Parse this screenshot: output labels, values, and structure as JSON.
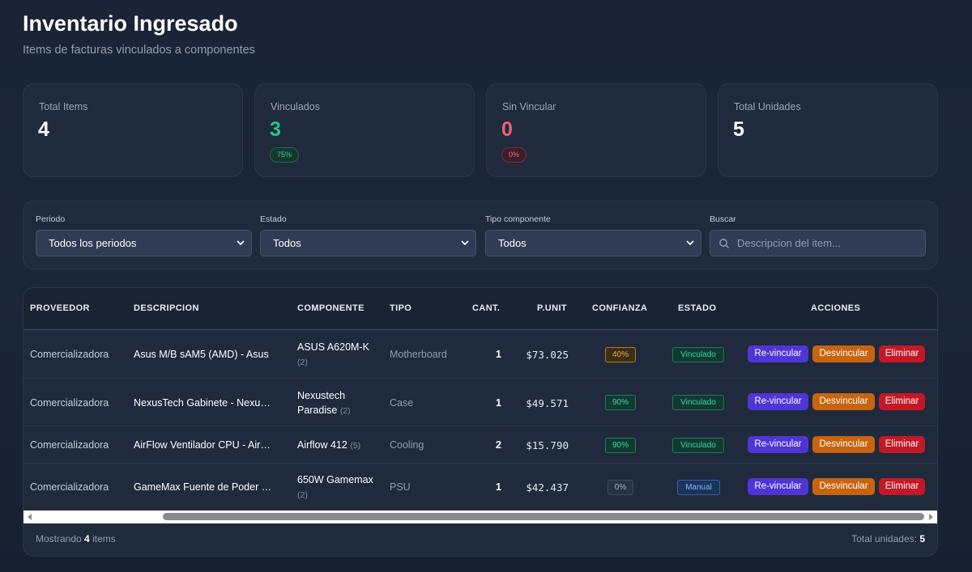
{
  "header": {
    "title": "Inventario Ingresado",
    "subtitle": "Items de facturas vinculados a componentes"
  },
  "stats": [
    {
      "label": "Total Items",
      "value": "4",
      "color": "#ffffff",
      "pct": ""
    },
    {
      "label": "Vinculados",
      "value": "3",
      "color": "#22c98b",
      "pct": "75%"
    },
    {
      "label": "Sin Vincular",
      "value": "0",
      "color": "#f0606d",
      "pct": "0%"
    },
    {
      "label": "Total Unidades",
      "value": "5",
      "color": "#ffffff",
      "pct": ""
    }
  ],
  "filters": {
    "periodo": {
      "label": "Periodo",
      "value": "Todos los periodos"
    },
    "estado": {
      "label": "Estado",
      "value": "Todos"
    },
    "tipo": {
      "label": "Tipo componente",
      "value": "Todos"
    },
    "buscar": {
      "label": "Buscar",
      "placeholder": "Descripcion del item..."
    }
  },
  "table": {
    "columns": [
      "PROVEEDOR",
      "DESCRIPCION",
      "COMPONENTE",
      "TIPO",
      "CANT.",
      "P.UNIT",
      "CONFIANZA",
      "ESTADO",
      "ACCIONES"
    ],
    "actions": {
      "relink": "Re-vincular",
      "unlink": "Desvincular",
      "delete": "Eliminar"
    },
    "rows": [
      {
        "proveedor": "Comercializadora",
        "descripcion": "Asus M/B sAM5 (AMD) - Asus",
        "componente": "ASUS A620M-K",
        "count": "(2)",
        "tipo": "Motherboard",
        "cant": "1",
        "punit": "$73.025",
        "confianza": "40%",
        "estado": "Vinculado"
      },
      {
        "proveedor": "Comercializadora",
        "descripcion": "NexusTech Gabinete - NexusTech",
        "componente": "Nexustech Paradise",
        "count": "(2)",
        "tipo": "Case",
        "cant": "1",
        "punit": "$49.571",
        "confianza": "90%",
        "estado": "Vinculado"
      },
      {
        "proveedor": "Comercializadora",
        "descripcion": "AirFlow Ventilador CPU - AirFlow",
        "componente": "Airflow 412",
        "count": "(5)",
        "tipo": "Cooling",
        "cant": "2",
        "punit": "$15.790",
        "confianza": "90%",
        "estado": "Vinculado"
      },
      {
        "proveedor": "Comercializadora",
        "descripcion": "GameMax Fuente de Poder - GameMax",
        "componente": "650W Gamemax",
        "count": "(2)",
        "tipo": "PSU",
        "cant": "1",
        "punit": "$42.437",
        "confianza": "0%",
        "estado": "Manual"
      }
    ]
  },
  "footer": {
    "showing_prefix": "Mostrando",
    "showing_count": "4",
    "showing_suffix": "items",
    "total_label": "Total unidades:",
    "total_value": "5"
  }
}
